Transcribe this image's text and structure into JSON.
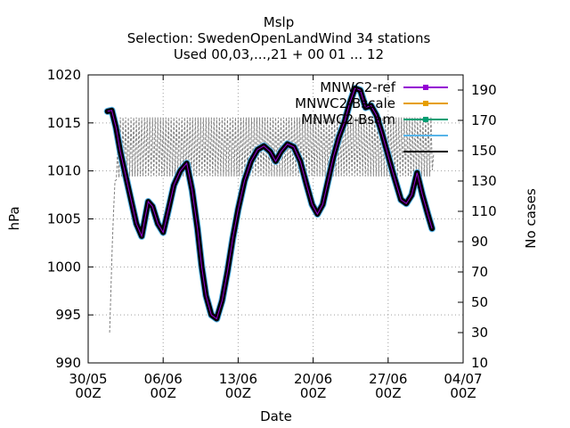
{
  "chart_data": {
    "type": "line",
    "title": [
      "Mslp",
      "Selection: SwedenOpenLandWind     34 stations",
      "Used 00,03,...,21 + 00 01 ... 12"
    ],
    "xlabel": "Date",
    "ylabel": "hPa",
    "y2label": "No cases",
    "xlim": [
      0,
      35
    ],
    "ylim": [
      990,
      1020
    ],
    "y2lim": [
      10,
      200
    ],
    "grid": true,
    "legend_position": "top-right",
    "x_ticks": [
      {
        "x": 0,
        "line1": "30/05",
        "line2": "00Z"
      },
      {
        "x": 7,
        "line1": "06/06",
        "line2": "00Z"
      },
      {
        "x": 14,
        "line1": "13/06",
        "line2": "00Z"
      },
      {
        "x": 21,
        "line1": "20/06",
        "line2": "00Z"
      },
      {
        "x": 28,
        "line1": "27/06",
        "line2": "00Z"
      },
      {
        "x": 35,
        "line1": "04/07",
        "line2": "00Z"
      }
    ],
    "y_ticks": [
      990,
      995,
      1000,
      1005,
      1010,
      1015,
      1020
    ],
    "y2_ticks": [
      10,
      30,
      50,
      70,
      90,
      110,
      130,
      150,
      170,
      190
    ],
    "series": [
      {
        "name": "MNWC2-ref",
        "color": "#9400d3",
        "marker": "square",
        "axis": "y",
        "x": [
          1.8,
          2.2,
          2.6,
          3.0,
          3.5,
          4.0,
          4.5,
          5.0,
          5.6,
          6.0,
          6.5,
          7.0,
          7.5,
          8.0,
          8.6,
          9.2,
          9.7,
          10.2,
          10.6,
          11.0,
          11.5,
          12.0,
          12.5,
          13.0,
          13.5,
          14.0,
          14.6,
          15.2,
          15.8,
          16.4,
          17.0,
          17.5,
          18.0,
          18.6,
          19.2,
          19.8,
          20.4,
          20.9,
          21.4,
          21.9,
          22.4,
          22.9,
          23.4,
          23.9,
          24.4,
          24.9,
          25.4,
          25.9,
          26.4,
          26.9,
          27.4,
          27.9,
          28.4,
          28.8,
          29.2,
          29.7,
          30.2,
          30.7,
          31.2,
          31.7,
          32.1
        ],
        "y": [
          1016.2,
          1016.3,
          1014.5,
          1012.0,
          1009.5,
          1007.0,
          1004.5,
          1003.2,
          1006.8,
          1006.3,
          1004.5,
          1003.6,
          1006.0,
          1008.5,
          1010.0,
          1010.8,
          1008.0,
          1004.0,
          1000.0,
          997.0,
          995.0,
          994.6,
          996.5,
          999.5,
          1003.0,
          1006.0,
          1009.0,
          1011.0,
          1012.2,
          1012.6,
          1012.0,
          1011.0,
          1012.0,
          1012.8,
          1012.5,
          1011.0,
          1008.5,
          1006.5,
          1005.5,
          1006.5,
          1009.0,
          1011.5,
          1013.5,
          1015.0,
          1017.0,
          1018.6,
          1018.4,
          1016.6,
          1016.8,
          1015.8,
          1014.0,
          1012.0,
          1010.0,
          1008.5,
          1007.0,
          1006.6,
          1007.5,
          1009.8,
          1007.5,
          1005.5,
          1004.0
        ]
      },
      {
        "name": "MNWC2-Bscale",
        "color": "#e69f00",
        "marker": "square",
        "axis": "y"
      },
      {
        "name": "MNWC2-Bsam",
        "color": "#009e73",
        "marker": "square",
        "axis": "y"
      },
      {
        "name": "",
        "color": "#56b4e9",
        "axis": "y"
      },
      {
        "name": "",
        "color": "#000000",
        "axis": "y"
      },
      {
        "name": "",
        "color": "#808080",
        "dash": "dashed",
        "axis": "y2",
        "x": [
          2.0,
          2.3,
          2.5,
          3.0,
          3.5,
          4.0,
          5.0,
          6.0,
          7.0,
          8.0,
          9.0,
          10.0,
          11.0,
          12.0,
          13.0,
          14.0,
          15.0,
          16.0,
          17.0,
          18.0,
          19.0,
          20.0,
          21.0,
          22.0,
          23.0,
          24.0,
          25.0,
          26.0,
          27.0,
          28.0,
          29.0,
          30.0,
          31.0,
          32.0,
          32.3
        ],
        "y": [
          30,
          100,
          130,
          172,
          172,
          172,
          172,
          172,
          172,
          172,
          172,
          172,
          172,
          172,
          172,
          172,
          172,
          172,
          172,
          172,
          172,
          172,
          172,
          172,
          172,
          172,
          172,
          172,
          172,
          172,
          172,
          172,
          172,
          172,
          143
        ],
        "y_low": [
          30,
          100,
          130,
          133,
          133,
          133,
          133,
          133,
          133,
          133,
          133,
          133,
          133,
          133,
          133,
          133,
          133,
          133,
          133,
          133,
          133,
          133,
          133,
          133,
          133,
          133,
          133,
          133,
          133,
          133,
          133,
          133,
          133,
          133,
          143
        ]
      }
    ]
  }
}
